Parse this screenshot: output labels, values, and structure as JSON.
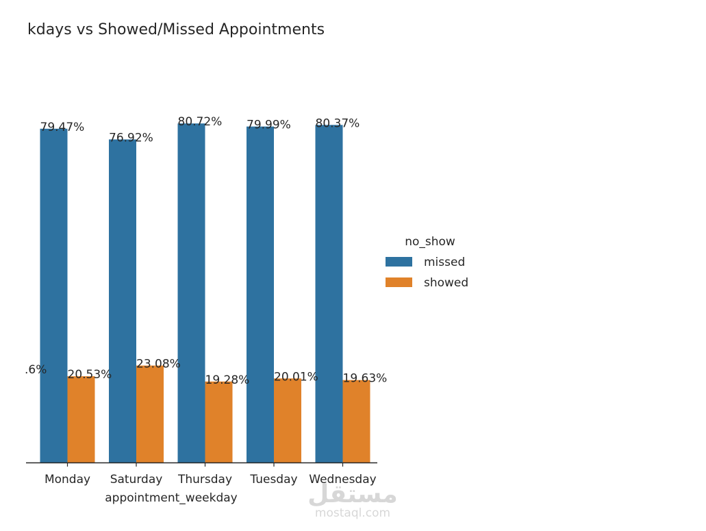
{
  "chart_data": {
    "type": "bar",
    "title": "kdays vs Showed/Missed Appointments",
    "xlabel": "appointment_weekday",
    "ylabel": "",
    "categories": [
      "Monday",
      "Saturday",
      "Thursday",
      "Tuesday",
      "Wednesday"
    ],
    "series": [
      {
        "name": "missed",
        "color": "#2e72a0",
        "values": [
          79.47,
          76.92,
          80.72,
          79.99,
          80.37
        ],
        "labels": [
          "79.47%",
          "76.92%",
          "80.72%",
          "79.99%",
          "80.37%"
        ]
      },
      {
        "name": "showed",
        "color": "#e0822a",
        "values": [
          20.53,
          23.08,
          19.28,
          20.01,
          19.63
        ],
        "labels": [
          "20.53%",
          "23.08%",
          "19.28%",
          "20.01%",
          "19.63%"
        ]
      }
    ],
    "clipped_annotation": ".6%",
    "ylim": [
      0,
      82
    ],
    "grid": false,
    "y_axis_visible": false,
    "legend": {
      "title": "no_show",
      "placement": "right",
      "entries": [
        "missed",
        "showed"
      ]
    }
  },
  "watermark": {
    "arabic": "مستقل",
    "latin": "mostaql.com"
  }
}
